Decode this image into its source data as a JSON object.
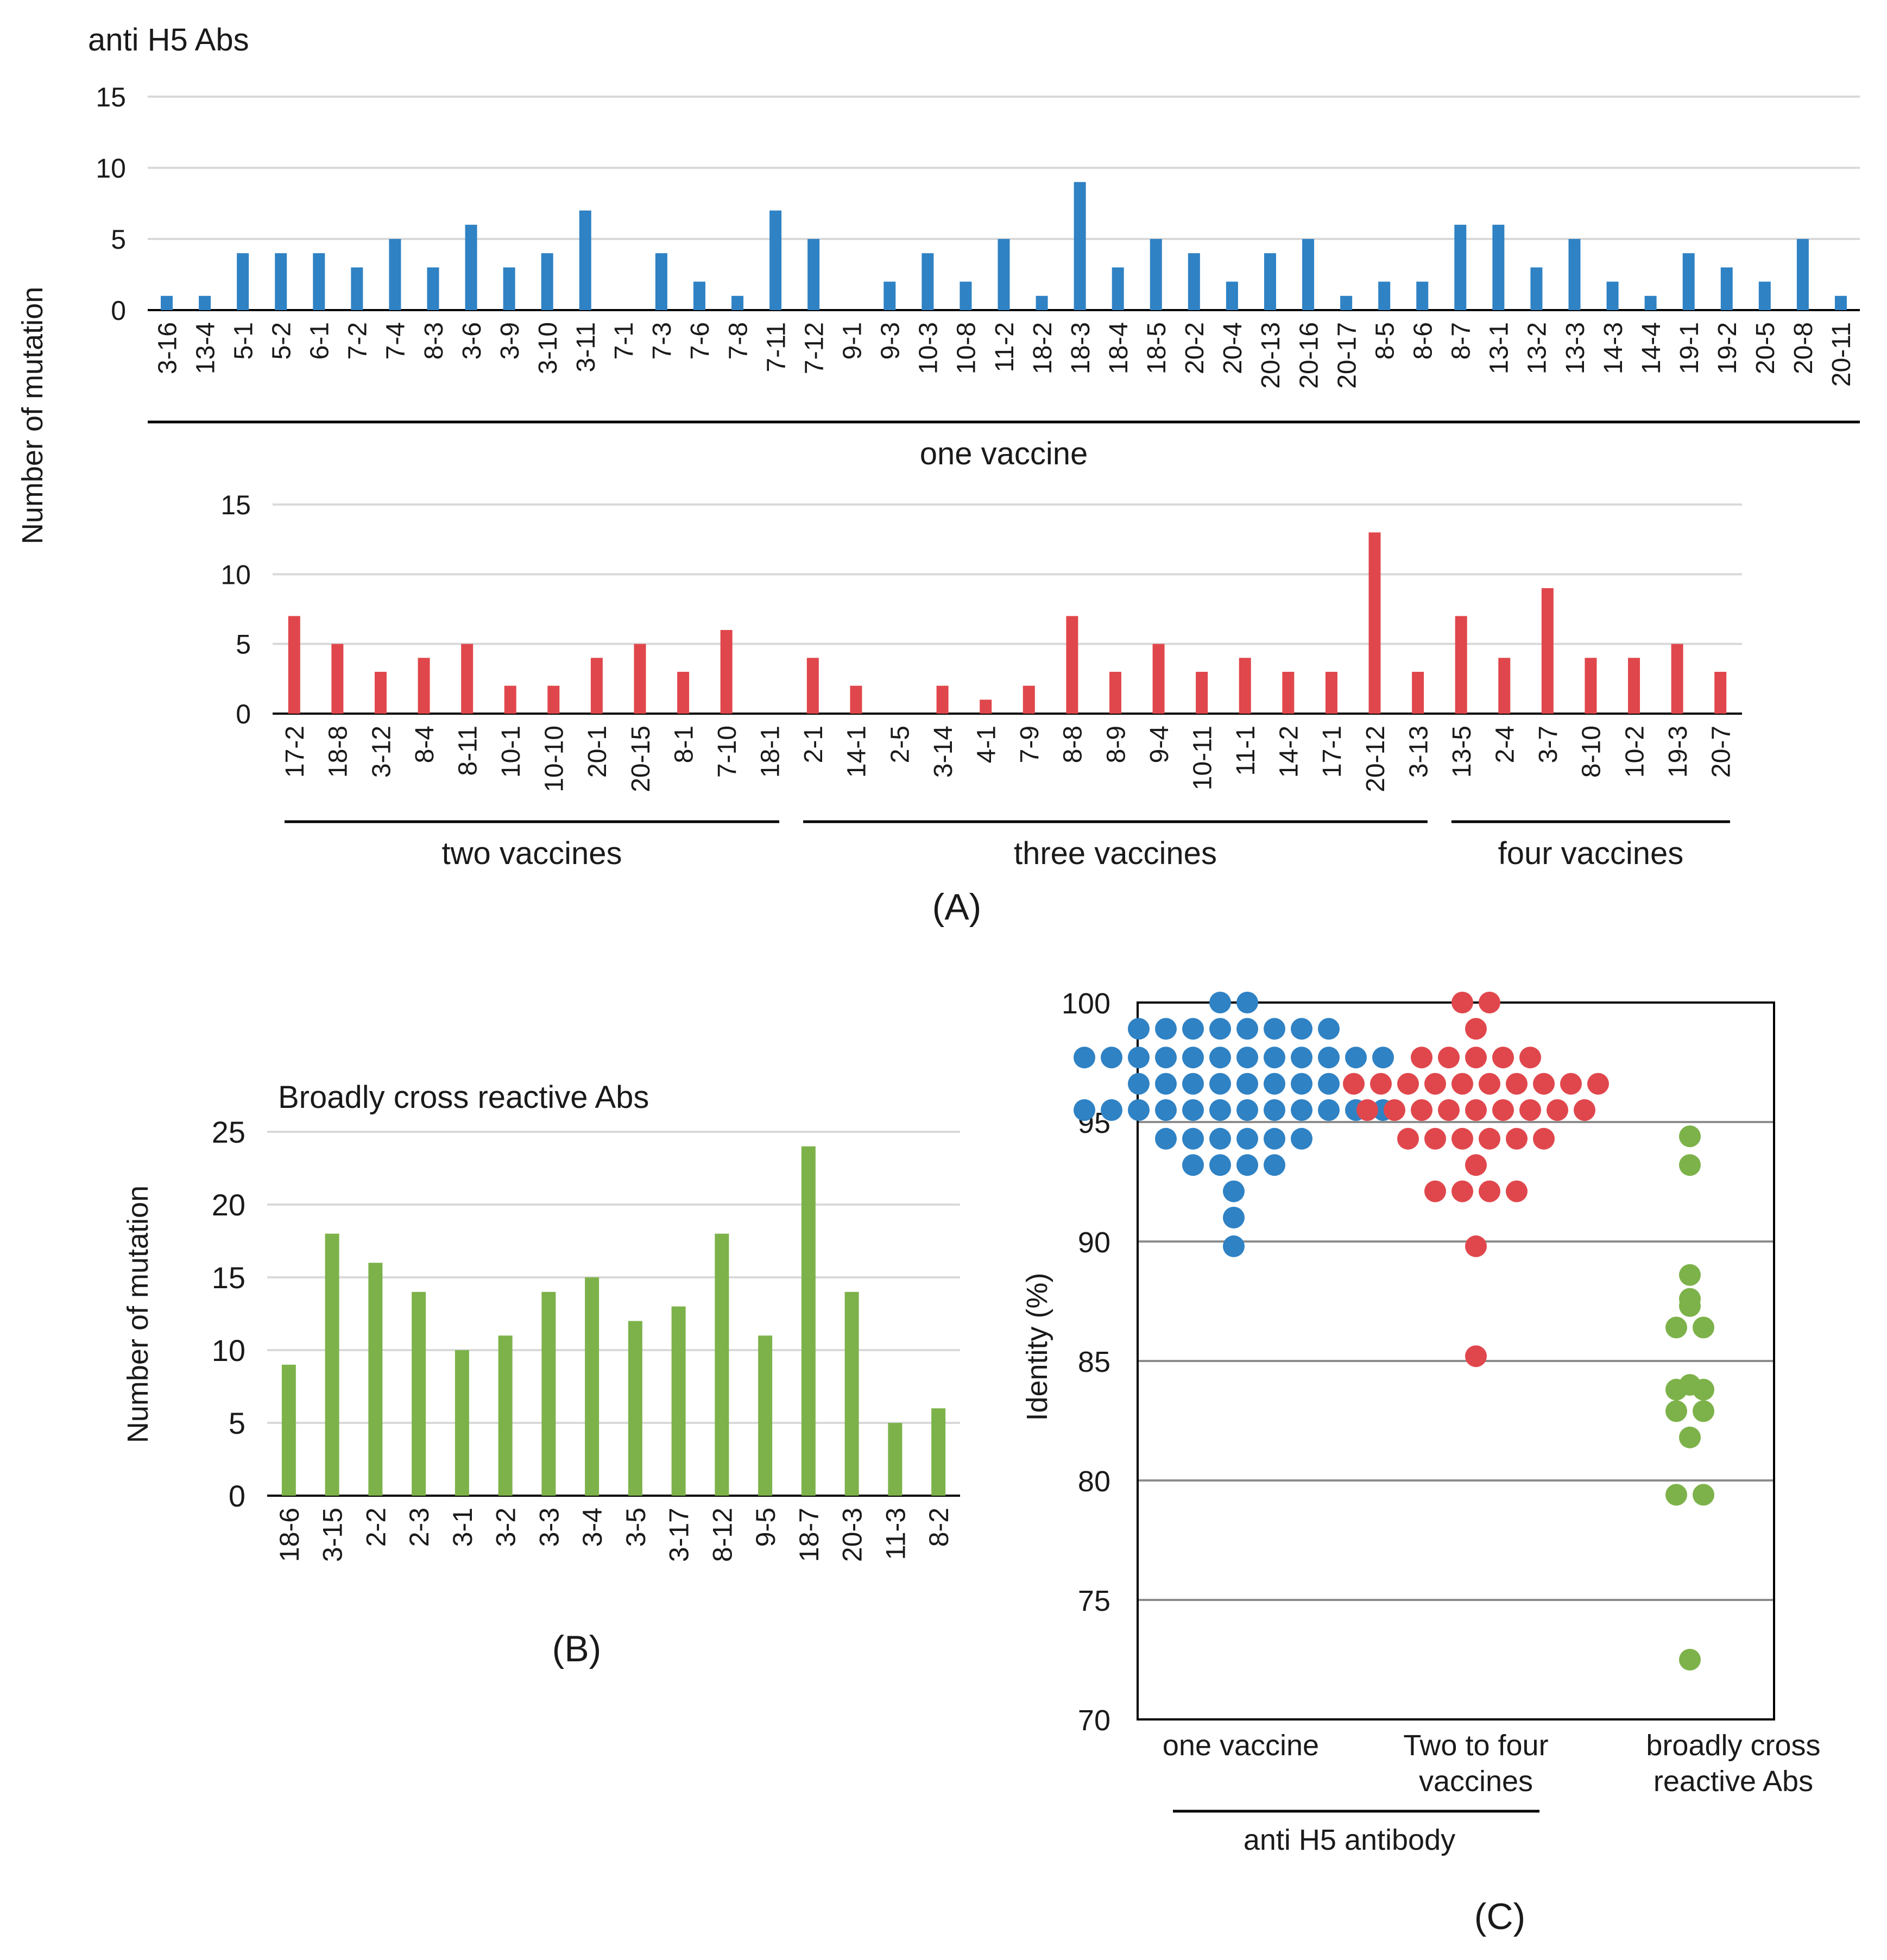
{
  "figure_labels": {
    "a": "(A)",
    "b": "(B)",
    "c": "(C)"
  },
  "colors": {
    "blue": "#2f82c4",
    "red": "#e0474c",
    "green": "#7db24a",
    "grid": "#d9d9d9",
    "grid_dark": "#8c8c8c",
    "axis": "#000000",
    "text": "#1a1a1a"
  },
  "chart_data": [
    {
      "id": "A1",
      "type": "bar",
      "title": "anti H5 Abs",
      "ylabel": "Number of  mutation",
      "ylim": [
        0,
        15
      ],
      "yticks": [
        0,
        5,
        10,
        15
      ],
      "color": "#2f82c4",
      "categories": [
        "3-16",
        "13-4",
        "5-1",
        "5-2",
        "6-1",
        "7-2",
        "7-4",
        "8-3",
        "3-6",
        "3-9",
        "3-10",
        "3-11",
        "7-1",
        "7-3",
        "7-6",
        "7-8",
        "7-11",
        "7-12",
        "9-1",
        "9-3",
        "10-3",
        "10-8",
        "11-2",
        "18-2",
        "18-3",
        "18-4",
        "18-5",
        "20-2",
        "20-4",
        "20-13",
        "20-16",
        "20-17",
        "8-5",
        "8-6",
        "8-7",
        "13-1",
        "13-2",
        "13-3",
        "14-3",
        "14-4",
        "19-1",
        "19-2",
        "20-5",
        "20-8",
        "20-11"
      ],
      "values": [
        1,
        1,
        4,
        4,
        4,
        3,
        5,
        3,
        6,
        3,
        4,
        7,
        0,
        4,
        2,
        1,
        7,
        5,
        0,
        2,
        4,
        2,
        5,
        1,
        9,
        3,
        5,
        4,
        2,
        4,
        5,
        1,
        2,
        2,
        6,
        6,
        3,
        5,
        2,
        1,
        4,
        3,
        2,
        5,
        1
      ],
      "groups": [
        {
          "label": "one vaccine",
          "from": 0,
          "to": 44
        }
      ]
    },
    {
      "id": "A2",
      "type": "bar",
      "ylim": [
        0,
        15
      ],
      "yticks": [
        0,
        5,
        10,
        15
      ],
      "color": "#e0474c",
      "categories": [
        "17-2",
        "18-8",
        "3-12",
        "8-4",
        "8-11",
        "10-1",
        "10-10",
        "20-1",
        "20-15",
        "8-1",
        "7-10",
        "18-1",
        "2-1",
        "14-1",
        "2-5",
        "3-14",
        "4-1",
        "7-9",
        "8-8",
        "8-9",
        "9-4",
        "10-11",
        "11-1",
        "14-2",
        "17-1",
        "20-12",
        "3-13",
        "13-5",
        "2-4",
        "3-7",
        "8-10",
        "10-2",
        "19-3",
        "20-7"
      ],
      "values": [
        7,
        5,
        3,
        4,
        5,
        2,
        2,
        4,
        5,
        3,
        6,
        0,
        4,
        2,
        0,
        2,
        1,
        2,
        7,
        3,
        5,
        3,
        4,
        3,
        3,
        13,
        3,
        7,
        4,
        9,
        4,
        4,
        5,
        3
      ],
      "groups": [
        {
          "label": "two vaccines",
          "from": 0,
          "to": 11
        },
        {
          "label": "three vaccines",
          "from": 12,
          "to": 26
        },
        {
          "label": "four vaccines",
          "from": 27,
          "to": 33
        }
      ]
    },
    {
      "id": "B",
      "type": "bar",
      "title": "Broadly cross reactive Abs",
      "ylabel": "Number of  mutation",
      "ylim": [
        0,
        25
      ],
      "yticks": [
        0,
        5,
        10,
        15,
        20,
        25
      ],
      "color": "#7db24a",
      "categories": [
        "18-6",
        "3-15",
        "2-2",
        "2-3",
        "3-1",
        "3-2",
        "3-3",
        "3-4",
        "3-5",
        "3-17",
        "8-12",
        "9-5",
        "18-7",
        "20-3",
        "11-3",
        "8-2"
      ],
      "values": [
        9,
        18,
        16,
        14,
        10,
        11,
        14,
        15,
        12,
        13,
        18,
        11,
        24,
        14,
        5,
        6
      ]
    },
    {
      "id": "C",
      "type": "scatter",
      "ylabel": "Identity (%)",
      "ylim": [
        70,
        100
      ],
      "yticks": [
        70,
        75,
        80,
        85,
        90,
        95,
        100
      ],
      "group_label": "anti H5 antibody",
      "series": [
        {
          "name": "one vaccine",
          "color": "#2f82c4",
          "values": [
            100,
            100,
            98.9,
            98.9,
            98.9,
            98.9,
            98.9,
            98.9,
            98.9,
            98.9,
            97.7,
            97.7,
            97.7,
            97.7,
            97.7,
            97.7,
            97.7,
            97.7,
            97.7,
            97.7,
            97.7,
            97.7,
            96.6,
            96.6,
            96.6,
            96.6,
            96.6,
            96.6,
            96.6,
            96.6,
            95.5,
            95.5,
            95.5,
            95.5,
            95.5,
            95.5,
            95.5,
            95.5,
            95.5,
            95.5,
            95.5,
            95.5,
            94.3,
            94.3,
            94.3,
            94.3,
            94.3,
            94.3,
            93.2,
            93.2,
            93.2,
            93.2,
            92.1,
            91,
            89.8
          ]
        },
        {
          "name": "Two to four vaccines",
          "color": "#e0474c",
          "values": [
            100,
            100,
            98.9,
            97.7,
            97.7,
            97.7,
            97.7,
            97.7,
            96.6,
            96.6,
            96.6,
            96.6,
            96.6,
            96.6,
            96.6,
            96.6,
            96.6,
            96.6,
            95.5,
            95.5,
            95.5,
            95.5,
            95.5,
            95.5,
            95.5,
            95.5,
            95.5,
            94.3,
            94.3,
            94.3,
            94.3,
            94.3,
            94.3,
            93.2,
            92.1,
            92.1,
            92.1,
            92.1,
            89.8,
            85.2
          ]
        },
        {
          "name": "broadly cross reactive Abs",
          "color": "#7db24a",
          "values": [
            94.4,
            93.2,
            88.6,
            87.6,
            87.3,
            86.4,
            86.4,
            84.0,
            83.8,
            83.8,
            82.9,
            82.9,
            81.8,
            79.4,
            79.4,
            72.5
          ]
        }
      ],
      "category_labels": [
        [
          "one vaccine"
        ],
        [
          "Two to four",
          "vaccines"
        ],
        [
          "broadly cross",
          "reactive Abs"
        ]
      ]
    }
  ]
}
